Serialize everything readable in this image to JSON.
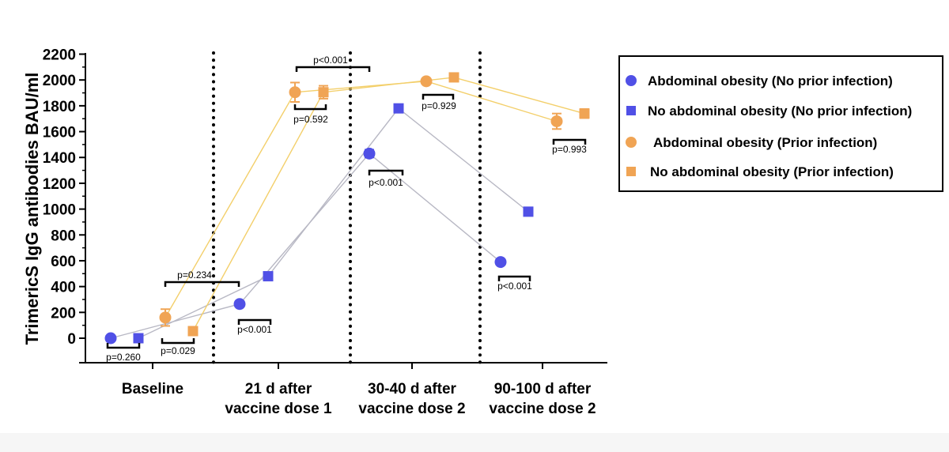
{
  "chart_data": {
    "type": "line",
    "title": "",
    "xlabel": "",
    "ylabel": "TrimericS IgG antibodies BAU/ml",
    "ylim": [
      -200,
      2200
    ],
    "yticks": [
      0,
      200,
      400,
      600,
      800,
      1000,
      1200,
      1400,
      1600,
      1800,
      2000,
      2200
    ],
    "categories": [
      [
        "Baseline"
      ],
      [
        "21 d after",
        "vaccine dose 1"
      ],
      [
        "30-40 d after",
        "vaccine dose 2"
      ],
      [
        "90-100 d after",
        "vaccine dose 2"
      ]
    ],
    "series": [
      {
        "name": "Abdominal obesity (No prior infection)",
        "marker": "circle",
        "color": "#5050e6",
        "line_color": "#b8b8c4",
        "values": [
          0,
          265,
          1430,
          590
        ],
        "err": [
          0,
          15,
          30,
          15
        ]
      },
      {
        "name": "No abdominal obesity (No prior infection)",
        "marker": "square",
        "color": "#5050e6",
        "line_color": "#b8b8c4",
        "values": [
          0,
          480,
          1780,
          980
        ],
        "err": [
          0,
          0,
          0,
          0
        ]
      },
      {
        "name": "Abdominal obesity (Prior infection)",
        "marker": "circle",
        "color": "#f0a454",
        "line_color": "#f3cf6a",
        "values": [
          160,
          1905,
          1990,
          1680
        ],
        "err": [
          65,
          75,
          20,
          60
        ]
      },
      {
        "name": "No abdominal obesity (Prior infection)",
        "marker": "square",
        "color": "#f0a454",
        "line_color": "#f3cf6a",
        "values": [
          55,
          1905,
          2020,
          1740
        ],
        "err": [
          0,
          50,
          0,
          35
        ]
      }
    ],
    "annotations": [
      {
        "text": "p=0.260"
      },
      {
        "text": "p=0.029"
      },
      {
        "text": "p=0.234"
      },
      {
        "text": "p<0.001"
      },
      {
        "text": "p=0.592"
      },
      {
        "text": "p<0.001"
      },
      {
        "text": "p<0.001"
      },
      {
        "text": "p=0.929"
      },
      {
        "text": "p<0.001"
      },
      {
        "text": "p=0.993"
      }
    ],
    "legend_position": "right",
    "grid": false
  }
}
